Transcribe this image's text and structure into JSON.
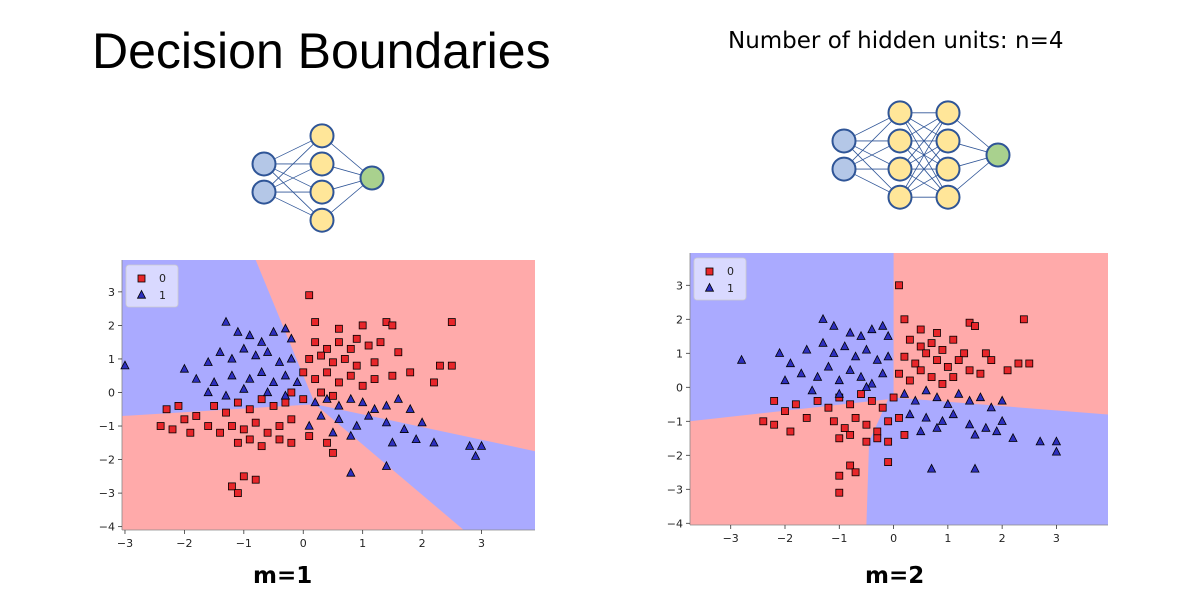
{
  "title": "Decision Boundaries",
  "subtitle": "Number of hidden units: n=4",
  "colors": {
    "class0_region": "#ffaaaa",
    "class1_region": "#aaaaff",
    "class0_marker": "#e8262a",
    "class1_marker": "#2d2fbf",
    "input_node": "#b4c7e7",
    "hidden_node": "#ffe699",
    "output_node": "#a9d18e",
    "node_stroke": "#2f5597"
  },
  "networks": [
    {
      "layers": [
        2,
        4,
        1
      ],
      "caption": "m=1",
      "icons": "neural-network-diagram"
    },
    {
      "layers": [
        2,
        4,
        4,
        1
      ],
      "caption": "m=2",
      "icons": "neural-network-diagram"
    }
  ],
  "chart_data": [
    {
      "type": "scatter",
      "title": "",
      "xlabel": "",
      "ylabel": "",
      "xlim": [
        -3.05,
        3.9
      ],
      "ylim": [
        -4.1,
        3.95
      ],
      "xticks": [
        -3,
        -2,
        -1,
        0,
        1,
        2,
        3
      ],
      "yticks": [
        -4,
        -3,
        -2,
        -1,
        0,
        1,
        2,
        3
      ],
      "legend": {
        "position": "top-left",
        "entries": [
          "0",
          "1"
        ]
      },
      "boundary": "single hidden layer: two linear boundaries meeting near (0.2, -0.4)",
      "series": [
        {
          "name": "0",
          "marker": "square",
          "points": [
            [
              0.1,
              2.9
            ],
            [
              0.2,
              2.1
            ],
            [
              0.6,
              1.9
            ],
            [
              1.0,
              2.0
            ],
            [
              1.4,
              2.1
            ],
            [
              1.5,
              2.0
            ],
            [
              2.5,
              2.1
            ],
            [
              0.2,
              1.5
            ],
            [
              0.4,
              1.3
            ],
            [
              0.6,
              1.5
            ],
            [
              0.8,
              1.3
            ],
            [
              0.9,
              1.6
            ],
            [
              1.1,
              1.4
            ],
            [
              1.3,
              1.5
            ],
            [
              1.6,
              1.2
            ],
            [
              2.3,
              0.8
            ],
            [
              2.5,
              0.8
            ],
            [
              0.1,
              1.0
            ],
            [
              0.3,
              1.1
            ],
            [
              0.5,
              0.9
            ],
            [
              0.7,
              1.0
            ],
            [
              0.9,
              0.8
            ],
            [
              1.2,
              0.9
            ],
            [
              1.5,
              0.5
            ],
            [
              1.8,
              0.6
            ],
            [
              2.2,
              0.3
            ],
            [
              0.0,
              0.6
            ],
            [
              0.2,
              0.4
            ],
            [
              0.4,
              0.6
            ],
            [
              0.6,
              0.3
            ],
            [
              0.8,
              0.5
            ],
            [
              1.0,
              0.2
            ],
            [
              1.2,
              0.4
            ],
            [
              -0.2,
              0.0
            ],
            [
              0.0,
              -0.2
            ],
            [
              0.3,
              0.0
            ],
            [
              0.5,
              -0.1
            ],
            [
              -2.3,
              -0.5
            ],
            [
              -2.1,
              -0.4
            ],
            [
              -2.0,
              -0.8
            ],
            [
              -1.8,
              -0.7
            ],
            [
              -1.5,
              -0.4
            ],
            [
              -1.3,
              -0.6
            ],
            [
              -1.1,
              -0.3
            ],
            [
              -0.9,
              -0.5
            ],
            [
              -0.7,
              -0.2
            ],
            [
              -0.5,
              -0.4
            ],
            [
              -0.3,
              -0.3
            ],
            [
              -2.4,
              -1.0
            ],
            [
              -2.2,
              -1.1
            ],
            [
              -1.9,
              -1.2
            ],
            [
              -1.6,
              -1.0
            ],
            [
              -1.4,
              -1.2
            ],
            [
              -1.2,
              -1.0
            ],
            [
              -1.0,
              -1.1
            ],
            [
              -0.8,
              -0.9
            ],
            [
              -0.6,
              -1.2
            ],
            [
              -0.4,
              -1.0
            ],
            [
              -0.2,
              -0.8
            ],
            [
              -1.1,
              -1.5
            ],
            [
              -0.9,
              -1.4
            ],
            [
              -0.7,
              -1.6
            ],
            [
              -0.4,
              -1.4
            ],
            [
              -0.2,
              -1.5
            ],
            [
              0.1,
              -1.3
            ],
            [
              0.4,
              -1.5
            ],
            [
              0.5,
              -1.8
            ],
            [
              -1.0,
              -2.5
            ],
            [
              -1.2,
              -2.8
            ],
            [
              -0.8,
              -2.6
            ],
            [
              -1.1,
              -3.0
            ]
          ]
        },
        {
          "name": "1",
          "marker": "triangle",
          "points": [
            [
              -1.3,
              2.1
            ],
            [
              -1.1,
              1.8
            ],
            [
              -0.9,
              1.7
            ],
            [
              -0.7,
              1.5
            ],
            [
              -0.5,
              1.8
            ],
            [
              -0.3,
              1.9
            ],
            [
              -0.2,
              1.6
            ],
            [
              -3.0,
              0.8
            ],
            [
              -2.0,
              0.7
            ],
            [
              -1.6,
              0.9
            ],
            [
              -1.4,
              1.2
            ],
            [
              -1.2,
              1.0
            ],
            [
              -1.0,
              1.3
            ],
            [
              -0.8,
              1.1
            ],
            [
              -0.6,
              1.2
            ],
            [
              -0.4,
              0.9
            ],
            [
              -0.2,
              1.0
            ],
            [
              -1.8,
              0.4
            ],
            [
              -1.5,
              0.3
            ],
            [
              -1.2,
              0.5
            ],
            [
              -0.9,
              0.4
            ],
            [
              -0.7,
              0.6
            ],
            [
              -0.5,
              0.3
            ],
            [
              -0.3,
              0.5
            ],
            [
              -0.1,
              0.3
            ],
            [
              -1.6,
              0.0
            ],
            [
              -1.3,
              -0.1
            ],
            [
              -1.0,
              0.1
            ],
            [
              -0.6,
              0.0
            ],
            [
              -0.3,
              -0.1
            ],
            [
              0.2,
              -0.3
            ],
            [
              0.4,
              -0.2
            ],
            [
              0.6,
              -0.4
            ],
            [
              0.8,
              -0.2
            ],
            [
              1.0,
              -0.3
            ],
            [
              1.2,
              -0.5
            ],
            [
              1.4,
              -0.4
            ],
            [
              1.6,
              -0.2
            ],
            [
              1.8,
              -0.5
            ],
            [
              0.3,
              -0.7
            ],
            [
              0.6,
              -0.8
            ],
            [
              0.9,
              -1.0
            ],
            [
              1.1,
              -0.7
            ],
            [
              1.4,
              -0.9
            ],
            [
              1.7,
              -1.1
            ],
            [
              2.0,
              -0.9
            ],
            [
              2.2,
              -1.5
            ],
            [
              0.1,
              -1.0
            ],
            [
              0.5,
              -1.2
            ],
            [
              0.8,
              -1.3
            ],
            [
              1.5,
              -1.5
            ],
            [
              1.9,
              -1.4
            ],
            [
              2.8,
              -1.6
            ],
            [
              2.9,
              -1.9
            ],
            [
              3.0,
              -1.6
            ],
            [
              0.8,
              -2.4
            ],
            [
              1.4,
              -2.2
            ]
          ]
        }
      ]
    },
    {
      "type": "scatter",
      "title": "",
      "xlabel": "",
      "ylabel": "",
      "xlim": [
        -3.75,
        3.95
      ],
      "ylim": [
        -4.05,
        3.95
      ],
      "xticks": [
        -3,
        -2,
        -1,
        0,
        1,
        2,
        3
      ],
      "yticks": [
        -4,
        -3,
        -2,
        -1,
        0,
        1,
        2,
        3
      ],
      "legend": {
        "position": "top-left",
        "entries": [
          "0",
          "1"
        ]
      },
      "boundary": "two hidden layers: piecewise-linear boundary",
      "series": [
        {
          "name": "0",
          "marker": "square",
          "points": [
            [
              0.1,
              3.0
            ],
            [
              0.2,
              2.0
            ],
            [
              0.5,
              1.7
            ],
            [
              0.8,
              1.6
            ],
            [
              1.4,
              1.9
            ],
            [
              1.5,
              1.8
            ],
            [
              2.4,
              2.0
            ],
            [
              0.3,
              1.4
            ],
            [
              0.5,
              1.2
            ],
            [
              0.7,
              1.3
            ],
            [
              0.9,
              1.1
            ],
            [
              1.1,
              1.4
            ],
            [
              1.3,
              1.0
            ],
            [
              1.7,
              1.0
            ],
            [
              1.8,
              0.8
            ],
            [
              2.1,
              0.5
            ],
            [
              2.3,
              0.7
            ],
            [
              2.5,
              0.7
            ],
            [
              0.2,
              0.9
            ],
            [
              0.4,
              0.7
            ],
            [
              0.6,
              1.0
            ],
            [
              0.8,
              0.8
            ],
            [
              1.0,
              0.6
            ],
            [
              1.2,
              0.8
            ],
            [
              1.4,
              0.5
            ],
            [
              1.6,
              0.4
            ],
            [
              0.1,
              0.4
            ],
            [
              0.3,
              0.2
            ],
            [
              0.5,
              0.5
            ],
            [
              0.7,
              0.3
            ],
            [
              0.9,
              0.1
            ],
            [
              1.1,
              0.3
            ],
            [
              -2.2,
              -0.4
            ],
            [
              -2.0,
              -0.7
            ],
            [
              -1.8,
              -0.5
            ],
            [
              -1.6,
              -0.9
            ],
            [
              -1.4,
              -0.4
            ],
            [
              -1.2,
              -0.6
            ],
            [
              -1.0,
              -0.3
            ],
            [
              -0.8,
              -0.5
            ],
            [
              -0.6,
              -0.2
            ],
            [
              -0.4,
              -0.4
            ],
            [
              -0.2,
              -0.6
            ],
            [
              0.0,
              -0.3
            ],
            [
              -2.4,
              -1.0
            ],
            [
              -2.2,
              -1.1
            ],
            [
              -1.9,
              -1.3
            ],
            [
              -1.1,
              -1.0
            ],
            [
              -0.9,
              -1.2
            ],
            [
              -0.7,
              -0.9
            ],
            [
              -0.5,
              -1.1
            ],
            [
              -0.3,
              -1.3
            ],
            [
              -0.1,
              -1.0
            ],
            [
              0.1,
              -0.9
            ],
            [
              -1.0,
              -1.5
            ],
            [
              -0.8,
              -1.4
            ],
            [
              -0.5,
              -1.6
            ],
            [
              -0.3,
              -1.5
            ],
            [
              -0.1,
              -1.6
            ],
            [
              0.2,
              -1.4
            ],
            [
              -0.8,
              -2.3
            ],
            [
              -1.0,
              -2.6
            ],
            [
              -0.7,
              -2.5
            ],
            [
              -1.0,
              -3.1
            ],
            [
              -0.1,
              -2.2
            ]
          ]
        },
        {
          "name": "1",
          "marker": "triangle",
          "points": [
            [
              -1.3,
              2.0
            ],
            [
              -1.1,
              1.8
            ],
            [
              -0.8,
              1.6
            ],
            [
              -0.6,
              1.5
            ],
            [
              -0.4,
              1.7
            ],
            [
              -0.2,
              1.8
            ],
            [
              -0.1,
              1.5
            ],
            [
              -2.8,
              0.8
            ],
            [
              -2.1,
              1.0
            ],
            [
              -1.9,
              0.7
            ],
            [
              -1.6,
              1.1
            ],
            [
              -1.3,
              1.3
            ],
            [
              -1.1,
              1.0
            ],
            [
              -0.9,
              1.2
            ],
            [
              -0.7,
              0.9
            ],
            [
              -0.5,
              1.1
            ],
            [
              -0.3,
              0.8
            ],
            [
              -0.1,
              0.9
            ],
            [
              -2.0,
              0.2
            ],
            [
              -1.7,
              0.4
            ],
            [
              -1.4,
              0.3
            ],
            [
              -1.2,
              0.6
            ],
            [
              -1.0,
              0.2
            ],
            [
              -0.8,
              0.5
            ],
            [
              -0.6,
              0.3
            ],
            [
              -0.4,
              0.1
            ],
            [
              -0.2,
              0.4
            ],
            [
              -1.5,
              -0.1
            ],
            [
              -1.0,
              -0.2
            ],
            [
              -0.5,
              0.0
            ],
            [
              0.2,
              -0.2
            ],
            [
              0.4,
              -0.4
            ],
            [
              0.6,
              -0.1
            ],
            [
              0.8,
              -0.3
            ],
            [
              1.0,
              -0.5
            ],
            [
              1.2,
              -0.2
            ],
            [
              1.4,
              -0.4
            ],
            [
              1.6,
              -0.3
            ],
            [
              1.8,
              -0.6
            ],
            [
              2.0,
              -0.4
            ],
            [
              0.3,
              -0.8
            ],
            [
              0.6,
              -0.9
            ],
            [
              0.9,
              -1.0
            ],
            [
              1.1,
              -0.8
            ],
            [
              1.4,
              -1.1
            ],
            [
              1.7,
              -1.2
            ],
            [
              2.0,
              -1.0
            ],
            [
              2.2,
              -1.5
            ],
            [
              0.5,
              -1.3
            ],
            [
              0.8,
              -1.2
            ],
            [
              1.5,
              -1.4
            ],
            [
              1.9,
              -1.3
            ],
            [
              2.7,
              -1.6
            ],
            [
              3.0,
              -1.6
            ],
            [
              3.0,
              -1.9
            ],
            [
              0.7,
              -2.4
            ],
            [
              1.5,
              -2.4
            ]
          ]
        }
      ]
    }
  ]
}
